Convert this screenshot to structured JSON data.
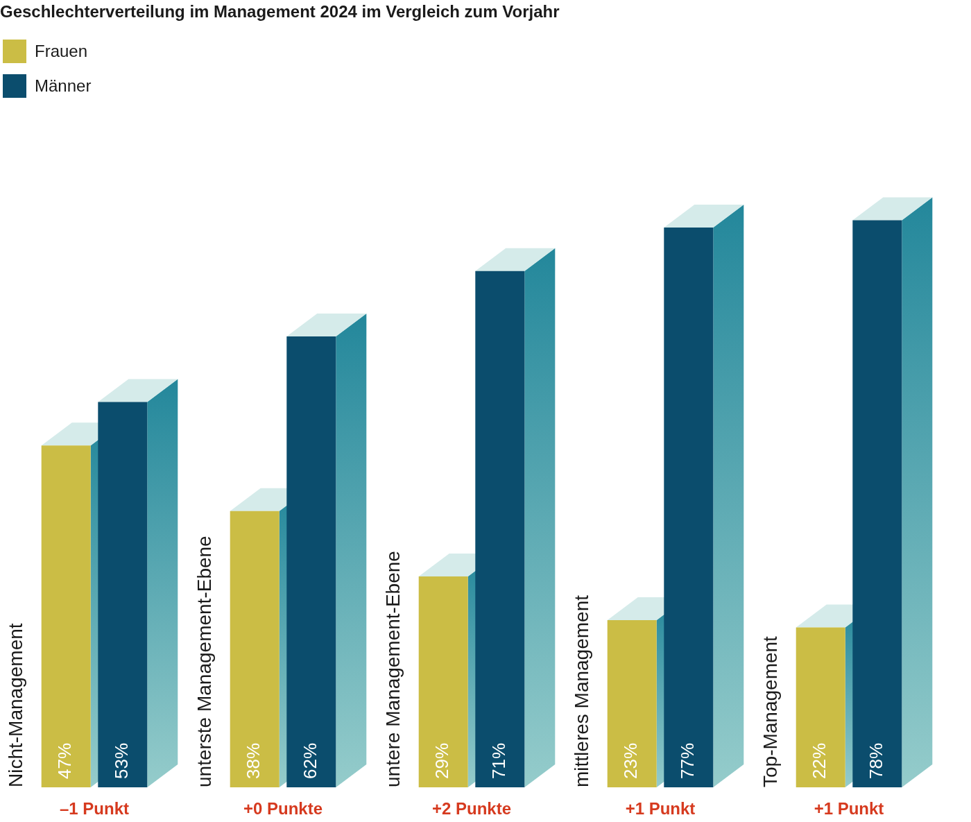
{
  "chart_data": {
    "type": "bar",
    "title": "Geschlechterverteilung im Management 2024 im Vergleich zum Vorjahr",
    "categories": [
      "Nicht-Management",
      "unterste Management-Ebene",
      "untere Management-Ebene",
      "mittleres Management",
      "Top-Management"
    ],
    "series": [
      {
        "name": "Frauen",
        "color": "#cbbd45",
        "values": [
          47,
          38,
          29,
          23,
          22
        ],
        "value_labels": [
          "47%",
          "38%",
          "29%",
          "23%",
          "22%"
        ]
      },
      {
        "name": "Männer",
        "color": "#0b4d6d",
        "values": [
          53,
          62,
          71,
          77,
          78
        ],
        "value_labels": [
          "53%",
          "62%",
          "71%",
          "77%",
          "78%"
        ]
      }
    ],
    "annotations": [
      "–1 Punkt",
      "+0 Punkte",
      "+2 Punkte",
      "+1 Punkt",
      "+1 Punkt"
    ],
    "ylim": [
      0,
      100
    ],
    "grid": false,
    "legend": "upper left",
    "data_labels": true,
    "tick_labels": false
  }
}
